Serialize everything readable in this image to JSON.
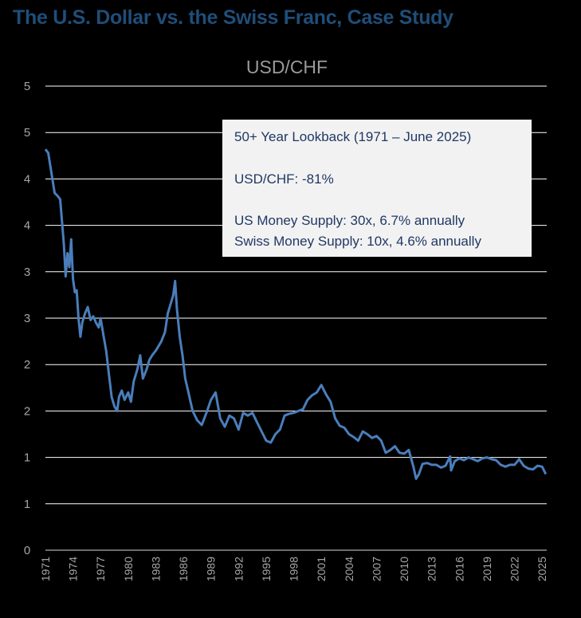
{
  "figure_title": "The U.S. Dollar vs. the Swiss Franc, Case Study",
  "colors": {
    "background": "#000000",
    "title": "#1f4e79",
    "line": "#4a7ebb",
    "grid": "#ffffff",
    "annotation_box": "#f2f2f2",
    "annotation_text": "#1f3864"
  },
  "annotation": {
    "line1": "50+ Year Lookback (1971 – June 2025)",
    "line2": "USD/CHF: -81%",
    "line3": "US Money Supply: 30x, 6.7% annually",
    "line4": "Swiss Money Supply: 10x, 4.6% annually"
  },
  "chart_data": {
    "type": "line",
    "title": "USD/CHF",
    "xlabel": "",
    "ylabel": "",
    "grid": true,
    "ylim": [
      0,
      5
    ],
    "xlim": [
      1971,
      2025.5
    ],
    "y_tick_values": [
      0,
      0.5,
      1,
      1.5,
      2,
      2.5,
      3,
      3.5,
      4,
      4.5,
      5
    ],
    "y_tick_labels": [
      "0",
      "1",
      "1",
      "2",
      "2",
      "3",
      "3",
      "4",
      "4",
      "5",
      "5"
    ],
    "x_tick_labels": [
      "1971",
      "1974",
      "1977",
      "1980",
      "1983",
      "1986",
      "1989",
      "1992",
      "1995",
      "1998",
      "2001",
      "2004",
      "2007",
      "2010",
      "2013",
      "2016",
      "2019",
      "2022",
      "2025"
    ],
    "series": [
      {
        "name": "",
        "x": [
          1971.0,
          1971.3,
          1971.6,
          1972.0,
          1972.3,
          1972.6,
          1973.0,
          1973.2,
          1973.4,
          1973.6,
          1973.8,
          1974.0,
          1974.2,
          1974.4,
          1974.6,
          1974.8,
          1975.0,
          1975.3,
          1975.6,
          1975.9,
          1976.2,
          1976.5,
          1976.8,
          1977.0,
          1977.3,
          1977.6,
          1977.9,
          1978.2,
          1978.5,
          1978.8,
          1979.0,
          1979.3,
          1979.6,
          1980.0,
          1980.3,
          1980.6,
          1981.0,
          1981.3,
          1981.6,
          1982.0,
          1982.3,
          1982.6,
          1983.0,
          1983.3,
          1983.6,
          1984.0,
          1984.3,
          1984.6,
          1984.9,
          1985.1,
          1985.3,
          1985.6,
          1985.9,
          1986.2,
          1986.5,
          1987.0,
          1987.5,
          1988.0,
          1988.5,
          1989.0,
          1989.5,
          1990.0,
          1990.5,
          1991.0,
          1991.5,
          1992.0,
          1992.5,
          1993.0,
          1993.5,
          1994.0,
          1994.5,
          1995.0,
          1995.5,
          1996.0,
          1996.5,
          1997.0,
          1997.5,
          1998.0,
          1998.5,
          1999.0,
          1999.5,
          2000.0,
          2000.5,
          2001.0,
          2001.5,
          2002.0,
          2002.5,
          2003.0,
          2003.5,
          2004.0,
          2004.5,
          2005.0,
          2005.5,
          2006.0,
          2006.5,
          2007.0,
          2007.5,
          2008.0,
          2008.5,
          2009.0,
          2009.5,
          2010.0,
          2010.5,
          2011.0,
          2011.3,
          2011.6,
          2012.0,
          2012.5,
          2013.0,
          2013.5,
          2014.0,
          2014.5,
          2015.0,
          2015.1,
          2015.5,
          2016.0,
          2016.5,
          2017.0,
          2017.5,
          2018.0,
          2018.5,
          2019.0,
          2019.5,
          2020.0,
          2020.5,
          2021.0,
          2021.5,
          2022.0,
          2022.5,
          2023.0,
          2023.5,
          2024.0,
          2024.5,
          2025.0,
          2025.4
        ],
        "y": [
          4.32,
          4.28,
          4.1,
          3.85,
          3.82,
          3.78,
          3.3,
          2.95,
          3.2,
          3.05,
          3.35,
          2.92,
          2.78,
          2.8,
          2.5,
          2.3,
          2.45,
          2.55,
          2.62,
          2.48,
          2.52,
          2.45,
          2.4,
          2.5,
          2.32,
          2.15,
          1.9,
          1.65,
          1.55,
          1.5,
          1.65,
          1.72,
          1.62,
          1.7,
          1.6,
          1.82,
          1.95,
          2.1,
          1.85,
          1.95,
          2.05,
          2.1,
          2.15,
          2.2,
          2.25,
          2.35,
          2.55,
          2.65,
          2.75,
          2.9,
          2.6,
          2.3,
          2.1,
          1.85,
          1.72,
          1.5,
          1.4,
          1.35,
          1.48,
          1.62,
          1.7,
          1.42,
          1.33,
          1.45,
          1.42,
          1.3,
          1.48,
          1.45,
          1.48,
          1.38,
          1.28,
          1.18,
          1.16,
          1.25,
          1.3,
          1.45,
          1.47,
          1.48,
          1.5,
          1.52,
          1.62,
          1.67,
          1.7,
          1.78,
          1.68,
          1.6,
          1.42,
          1.34,
          1.32,
          1.25,
          1.22,
          1.18,
          1.28,
          1.25,
          1.21,
          1.23,
          1.18,
          1.05,
          1.08,
          1.12,
          1.05,
          1.04,
          1.08,
          0.9,
          0.77,
          0.82,
          0.93,
          0.94,
          0.92,
          0.92,
          0.89,
          0.91,
          1.01,
          0.86,
          0.96,
          0.99,
          0.97,
          1.0,
          0.98,
          0.96,
          0.99,
          1.0,
          0.98,
          0.97,
          0.92,
          0.9,
          0.92,
          0.92,
          0.98,
          0.91,
          0.88,
          0.87,
          0.91,
          0.9,
          0.82
        ]
      }
    ]
  }
}
